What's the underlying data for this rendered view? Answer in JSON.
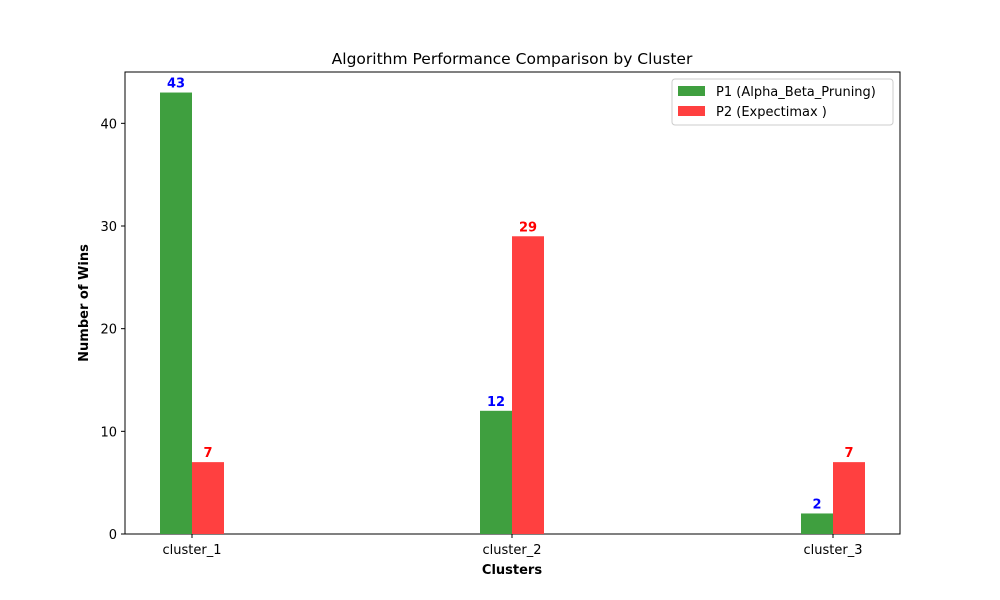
{
  "chart_data": {
    "type": "bar",
    "title": "Algorithm Performance Comparison by Cluster",
    "xlabel": "Clusters",
    "ylabel": "Number of Wins",
    "categories": [
      "cluster_1",
      "cluster_2",
      "cluster_3"
    ],
    "series": [
      {
        "name": "P1 (Alpha_Beta_Pruning)",
        "values": [
          43,
          12,
          2
        ],
        "color": "#3f9f3f",
        "label_color": "#0000ff"
      },
      {
        "name": "P2 (Expectimax )",
        "values": [
          7,
          29,
          7
        ],
        "color": "#ff4040",
        "label_color": "#ff0000"
      }
    ],
    "ylim": [
      0,
      45
    ],
    "yticks": [
      0,
      10,
      20,
      30,
      40
    ],
    "grid": false,
    "legend_position": "top-right"
  }
}
